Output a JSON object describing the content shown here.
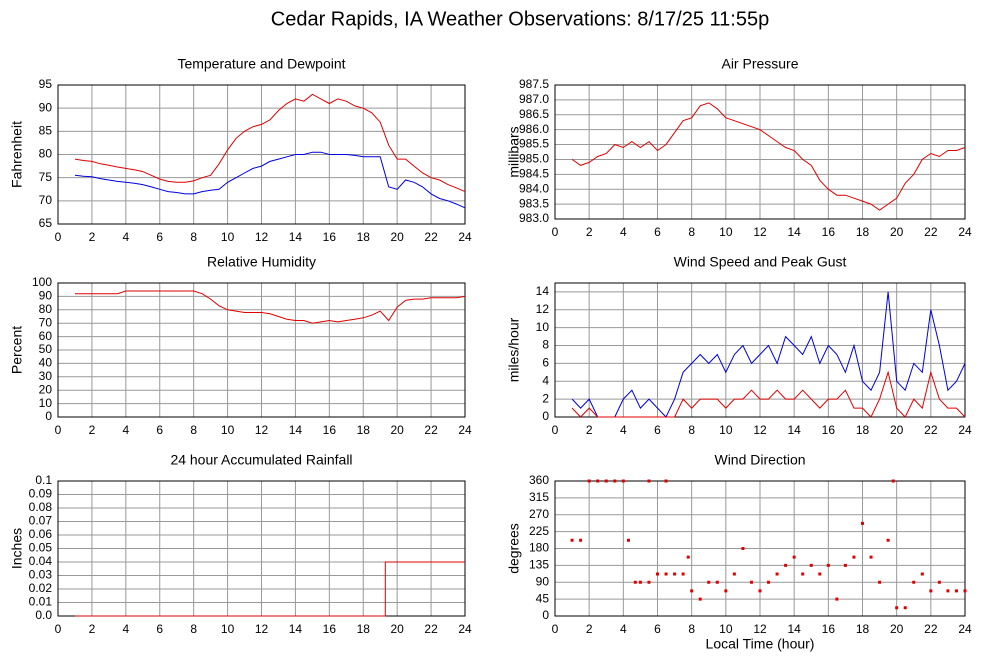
{
  "title": "Cedar Rapids, IA Weather Observations: 8/17/25 11:55p",
  "chart_data": [
    {
      "type": "line",
      "title": "Temperature and Dewpoint",
      "ylabel": "Fahrenheit",
      "xlim": [
        0,
        24
      ],
      "xticks": [
        0,
        2,
        4,
        6,
        8,
        10,
        12,
        14,
        16,
        18,
        20,
        22,
        24
      ],
      "ylim": [
        65,
        95
      ],
      "yticks": [
        65,
        70,
        75,
        80,
        85,
        90,
        95
      ],
      "grid": true,
      "x": [
        1,
        1.5,
        2,
        2.5,
        3,
        3.5,
        4,
        4.5,
        5,
        5.5,
        6,
        6.5,
        7,
        7.5,
        8,
        8.5,
        9,
        9.5,
        10,
        10.5,
        11,
        11.5,
        12,
        12.5,
        13,
        13.5,
        14,
        14.5,
        15,
        15.5,
        16,
        16.5,
        17,
        17.5,
        18,
        18.5,
        19,
        19.5,
        20,
        20.5,
        21,
        21.5,
        22,
        22.5,
        23,
        23.5,
        24
      ],
      "series": [
        {
          "color": "#e00000",
          "values": [
            79,
            78.7,
            78.5,
            78,
            77.7,
            77.3,
            77,
            76.7,
            76.3,
            75.5,
            74.7,
            74.2,
            74,
            74,
            74.3,
            75,
            75.5,
            78,
            81,
            83.5,
            85,
            86,
            86.5,
            87.5,
            89.5,
            91,
            92,
            91.5,
            93,
            92,
            91,
            92,
            91.5,
            90.5,
            90,
            89,
            87,
            82,
            79,
            79,
            77.5,
            76,
            75,
            74.5,
            73.5,
            72.8,
            72
          ]
        },
        {
          "color": "#0000e0",
          "values": [
            75.5,
            75.3,
            75.2,
            74.8,
            74.5,
            74.2,
            74,
            73.8,
            73.5,
            73,
            72.5,
            72,
            71.8,
            71.5,
            71.5,
            72,
            72.3,
            72.5,
            74,
            75,
            76,
            77,
            77.5,
            78.5,
            79,
            79.5,
            80,
            80,
            80.5,
            80.5,
            80,
            80,
            80,
            79.8,
            79.5,
            79.5,
            79.5,
            73,
            72.5,
            74.5,
            74,
            73,
            71.5,
            70.5,
            70,
            69.3,
            68.5
          ]
        }
      ]
    },
    {
      "type": "line",
      "title": "Air Pressure",
      "ylabel": "millibars",
      "xlim": [
        0,
        24
      ],
      "xticks": [
        0,
        2,
        4,
        6,
        8,
        10,
        12,
        14,
        16,
        18,
        20,
        22,
        24
      ],
      "ylim": [
        983,
        987.5
      ],
      "yticks": [
        {
          "value": 983,
          "label": "983.0"
        },
        983.5,
        {
          "value": 984,
          "label": "984.0"
        },
        984.5,
        {
          "value": 985,
          "label": "985.0"
        },
        985.5,
        {
          "value": 986,
          "label": "986.0"
        },
        986.5,
        {
          "value": 987,
          "label": "987.0"
        },
        987.5
      ],
      "grid": true,
      "x": [
        1,
        1.5,
        2,
        2.5,
        3,
        3.5,
        4,
        4.5,
        5,
        5.5,
        6,
        6.5,
        7,
        7.5,
        8,
        8.5,
        9,
        9.5,
        10,
        10.5,
        11,
        11.5,
        12,
        12.5,
        13,
        13.5,
        14,
        14.5,
        15,
        15.5,
        16,
        16.5,
        17,
        17.5,
        18,
        18.5,
        19,
        19.5,
        20,
        20.5,
        21,
        21.5,
        22,
        22.5,
        23,
        23.5,
        24
      ],
      "series": [
        {
          "color": "#e00000",
          "values": [
            985.0,
            984.8,
            984.9,
            985.1,
            985.2,
            985.5,
            985.4,
            985.6,
            985.4,
            985.6,
            985.3,
            985.5,
            985.9,
            986.3,
            986.4,
            986.8,
            986.9,
            986.7,
            986.4,
            986.3,
            986.2,
            986.1,
            986.0,
            985.8,
            985.6,
            985.4,
            985.3,
            985.0,
            984.8,
            984.3,
            984.0,
            983.8,
            983.8,
            983.7,
            983.6,
            983.5,
            983.3,
            983.5,
            983.7,
            984.2,
            984.5,
            985.0,
            985.2,
            985.1,
            985.3,
            985.3,
            985.4
          ]
        }
      ]
    },
    {
      "type": "line",
      "title": "Relative Humidity",
      "ylabel": "Percent",
      "xlim": [
        0,
        24
      ],
      "xticks": [
        0,
        2,
        4,
        6,
        8,
        10,
        12,
        14,
        16,
        18,
        20,
        22,
        24
      ],
      "ylim": [
        0,
        100
      ],
      "yticks": [
        0,
        10,
        20,
        30,
        40,
        50,
        60,
        70,
        80,
        90,
        100
      ],
      "grid": true,
      "x": [
        1,
        1.5,
        2,
        2.5,
        3,
        3.5,
        4,
        4.5,
        5,
        5.5,
        6,
        6.5,
        7,
        7.5,
        8,
        8.5,
        9,
        9.5,
        10,
        10.5,
        11,
        11.5,
        12,
        12.5,
        13,
        13.5,
        14,
        14.5,
        15,
        15.5,
        16,
        16.5,
        17,
        17.5,
        18,
        18.5,
        19,
        19.5,
        20,
        20.5,
        21,
        21.5,
        22,
        22.5,
        23,
        23.5,
        24
      ],
      "series": [
        {
          "color": "#e00000",
          "values": [
            92,
            92,
            92,
            92,
            92,
            92,
            94,
            94,
            94,
            94,
            94,
            94,
            94,
            94,
            94,
            92,
            88,
            83,
            80,
            79,
            78,
            78,
            78,
            77,
            75,
            73,
            72,
            72,
            70,
            71,
            72,
            71,
            72,
            73,
            74,
            76,
            79,
            72,
            82,
            87,
            88,
            88,
            89,
            89,
            89,
            89,
            90
          ]
        }
      ]
    },
    {
      "type": "line",
      "title": "Wind Speed and Peak Gust",
      "ylabel": "miles/hour",
      "xlim": [
        0,
        24
      ],
      "xticks": [
        0,
        2,
        4,
        6,
        8,
        10,
        12,
        14,
        16,
        18,
        20,
        22,
        24
      ],
      "ylim": [
        0,
        15
      ],
      "yticks": [
        0,
        2,
        4,
        6,
        8,
        10,
        12,
        14
      ],
      "grid": true,
      "x": [
        1,
        1.5,
        2,
        2.5,
        3,
        3.5,
        4,
        4.5,
        5,
        5.5,
        6,
        6.5,
        7,
        7.5,
        8,
        8.5,
        9,
        9.5,
        10,
        10.5,
        11,
        11.5,
        12,
        12.5,
        13,
        13.5,
        14,
        14.5,
        15,
        15.5,
        16,
        16.5,
        17,
        17.5,
        18,
        18.5,
        19,
        19.5,
        20,
        20.5,
        21,
        21.5,
        22,
        22.5,
        23,
        23.5,
        24
      ],
      "series": [
        {
          "color": "#0000e0",
          "values": [
            2,
            1,
            2,
            0,
            0,
            0,
            2,
            3,
            1,
            2,
            1,
            0,
            2,
            5,
            6,
            7,
            6,
            7,
            5,
            7,
            8,
            6,
            7,
            8,
            6,
            9,
            8,
            7,
            9,
            6,
            8,
            7,
            5,
            8,
            4,
            3,
            5,
            14,
            4,
            3,
            6,
            5,
            12,
            8,
            3,
            4,
            6
          ]
        },
        {
          "color": "#e00000",
          "values": [
            1,
            0,
            1,
            0,
            0,
            0,
            0,
            0,
            0,
            0,
            0,
            0,
            0,
            2,
            1,
            2,
            2,
            2,
            1,
            2,
            2,
            3,
            2,
            2,
            3,
            2,
            2,
            3,
            2,
            1,
            2,
            2,
            3,
            1,
            1,
            0,
            2,
            5,
            1,
            0,
            2,
            1,
            5,
            2,
            1,
            1,
            0
          ]
        }
      ]
    },
    {
      "type": "line",
      "title": "24 hour Accumulated Rainfall",
      "ylabel": "Inches",
      "xlim": [
        0,
        24
      ],
      "xticks": [
        0,
        2,
        4,
        6,
        8,
        10,
        12,
        14,
        16,
        18,
        20,
        22,
        24
      ],
      "ylim": [
        0,
        0.1
      ],
      "yticks": [
        {
          "value": 0,
          "label": "0.0"
        },
        0.01,
        0.02,
        0.03,
        0.04,
        0.05,
        0.06,
        0.07,
        0.08,
        0.09,
        0.1
      ],
      "grid": true,
      "x": [
        1,
        19.3,
        19.3,
        24
      ],
      "series": [
        {
          "color": "#e00000",
          "values": [
            0,
            0,
            0.04,
            0.04
          ]
        }
      ]
    },
    {
      "type": "scatter",
      "title": "Wind Direction",
      "ylabel": "degrees",
      "xlabel": "Local Time (hour)",
      "xlim": [
        0,
        24
      ],
      "xticks": [
        0,
        2,
        4,
        6,
        8,
        10,
        12,
        14,
        16,
        18,
        20,
        22,
        24
      ],
      "ylim": [
        0,
        360
      ],
      "yticks": [
        0,
        45,
        90,
        135,
        180,
        225,
        270,
        315,
        360
      ],
      "grid": true,
      "x": [
        1,
        1.5,
        2,
        2.5,
        3,
        3.5,
        4,
        4.3,
        4.7,
        5,
        5.5,
        5.5,
        6,
        6.5,
        6.5,
        7,
        7.5,
        7.8,
        8,
        8.5,
        9,
        9.5,
        10,
        10.5,
        11,
        11.5,
        12,
        12.5,
        13,
        13.5,
        14,
        14.5,
        15,
        15.5,
        16,
        16.5,
        17,
        17.5,
        18,
        18.5,
        19,
        19.5,
        19.8,
        20,
        20.5,
        21,
        21.5,
        22,
        22.5,
        23,
        23.5,
        24
      ],
      "series": [
        {
          "color": "#e00000",
          "values": [
            202,
            202,
            360,
            360,
            360,
            360,
            360,
            202,
            90,
            90,
            90,
            360,
            112,
            112,
            360,
            112,
            112,
            157,
            67,
            45,
            90,
            90,
            67,
            112,
            180,
            90,
            67,
            90,
            112,
            135,
            157,
            112,
            135,
            112,
            135,
            45,
            135,
            157,
            247,
            157,
            90,
            202,
            360,
            22,
            22,
            90,
            112,
            67,
            90,
            67,
            67,
            67
          ]
        }
      ]
    }
  ]
}
